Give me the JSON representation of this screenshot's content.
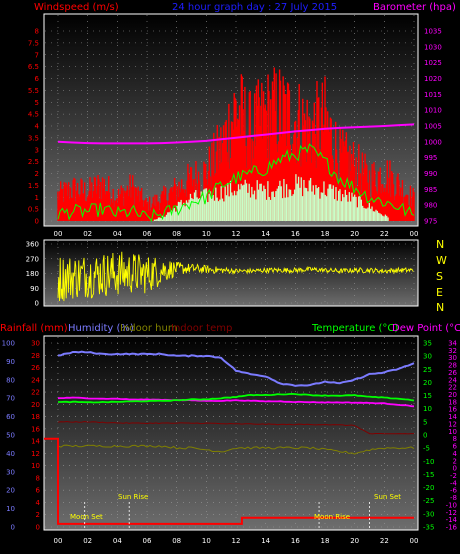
{
  "header": {
    "windspeed_label": "Windspeed (m/s)",
    "center_title": "24 hour graph day : 27 July 2015",
    "barometer_label": "Barometer (hpa)"
  },
  "bottom_header": {
    "rainfall": "Rainfall (mm)",
    "humidity": "Humidity (%)",
    "indoor_hum": "Indoor hum",
    "indoor_temp": "Indoor temp",
    "temperature": "Temperature (°C)",
    "dew_point": "Dew Point (°C)"
  },
  "compass": [
    "N",
    "W",
    "S",
    "E",
    "N"
  ],
  "annotations": {
    "moon_set": "Moon Set",
    "sun_rise": "Sun Rise",
    "moon_rise": "Moon Rise",
    "sun_set": "Sun Set"
  },
  "colors": {
    "windspeed": "#ff0000",
    "gust": "#ff0000",
    "avg_wind": "#00ff00",
    "barometer": "#ff00ff",
    "direction": "#ffff00",
    "rain": "#ff0000",
    "humidity": "#7b7bff",
    "indoor_hum": "#808000",
    "indoor_temp": "#800000",
    "temperature": "#00ff00",
    "dew_point": "#ff00ff",
    "solar": "#c8ffc8"
  },
  "chart_data": [
    {
      "type": "area",
      "name": "wind_baro",
      "x_ticks": [
        "00",
        "02",
        "04",
        "06",
        "08",
        "10",
        "12",
        "14",
        "16",
        "18",
        "20",
        "22",
        "00"
      ],
      "wind_ticks": [
        "0",
        "0.5",
        "1",
        "1.5",
        "2",
        "2.5",
        "3",
        "3.5",
        "4",
        "4.5",
        "5",
        "5.5",
        "6",
        "6.5",
        "7",
        "7.5",
        "8"
      ],
      "wind_ylim": [
        0,
        8
      ],
      "baro_ticks": [
        "975",
        "980",
        "985",
        "990",
        "995",
        "1000",
        "1005",
        "1010",
        "1015",
        "1020",
        "1025",
        "1030",
        "1035"
      ],
      "baro_ylim": [
        975,
        1035
      ],
      "x_hours": [
        0,
        1,
        2,
        3,
        4,
        5,
        6,
        7,
        8,
        9,
        10,
        11,
        12,
        13,
        14,
        15,
        16,
        17,
        18,
        19,
        20,
        21,
        22,
        23,
        24
      ],
      "gust": [
        1.6,
        2.0,
        1.8,
        2.3,
        1.5,
        2.1,
        1.0,
        1.4,
        2.0,
        2.6,
        3.0,
        4.5,
        7.0,
        5.5,
        6.5,
        6.8,
        6.3,
        5.7,
        6.2,
        4.0,
        3.5,
        2.6,
        3.0,
        2.2,
        1.4
      ],
      "avg_wind": [
        0.3,
        0.4,
        0.4,
        0.5,
        0.3,
        0.4,
        0.1,
        0.3,
        0.5,
        0.8,
        1.0,
        1.5,
        1.8,
        2.0,
        2.2,
        2.6,
        2.8,
        3.0,
        2.5,
        1.8,
        1.4,
        1.0,
        0.8,
        0.6,
        0.2
      ],
      "solar": [
        0,
        0,
        0,
        0,
        0,
        0,
        0,
        0.2,
        0.8,
        1.3,
        1.4,
        1.6,
        1.8,
        1.8,
        1.7,
        1.9,
        2.0,
        1.9,
        1.8,
        1.5,
        1.2,
        0.8,
        0.3,
        0,
        0
      ],
      "barometer": [
        1000.0,
        999.8,
        999.6,
        999.5,
        999.5,
        999.5,
        999.5,
        999.6,
        999.8,
        1000.0,
        1000.3,
        1000.8,
        1001.3,
        1001.8,
        1002.3,
        1002.8,
        1003.3,
        1003.7,
        1004.1,
        1004.4,
        1004.6,
        1004.8,
        1005.0,
        1005.3,
        1005.5
      ]
    },
    {
      "type": "line",
      "name": "wind_direction",
      "y_ticks": [
        "0",
        "90",
        "180",
        "270",
        "360"
      ],
      "ylim": [
        0,
        360
      ],
      "x_hours": [
        0,
        1,
        2,
        3,
        4,
        5,
        6,
        7,
        8,
        9,
        10,
        11,
        12,
        13,
        14,
        15,
        16,
        17,
        18,
        19,
        20,
        21,
        22,
        23,
        24
      ],
      "mean_direction": [
        150,
        160,
        170,
        175,
        180,
        185,
        175,
        200,
        210,
        210,
        205,
        200,
        195,
        195,
        200,
        200,
        200,
        205,
        200,
        195,
        200,
        200,
        195,
        200,
        200
      ],
      "spread": [
        150,
        140,
        140,
        140,
        140,
        130,
        120,
        90,
        40,
        30,
        25,
        20,
        15,
        15,
        15,
        15,
        15,
        15,
        15,
        15,
        15,
        15,
        15,
        15,
        15
      ]
    },
    {
      "type": "line",
      "name": "temp_hum_rain",
      "x_ticks": [
        "00",
        "02",
        "04",
        "06",
        "08",
        "10",
        "12",
        "14",
        "16",
        "18",
        "20",
        "22",
        "00"
      ],
      "rain_ticks": [
        "0",
        "2",
        "4",
        "6",
        "8",
        "10",
        "12",
        "14",
        "16",
        "18",
        "20",
        "22",
        "24",
        "26",
        "28",
        "30"
      ],
      "rain_ylim": [
        0,
        30
      ],
      "hum_ticks": [
        "0",
        "10",
        "20",
        "30",
        "40",
        "50",
        "60",
        "70",
        "80",
        "90",
        "100"
      ],
      "hum_ylim": [
        0,
        100
      ],
      "temp_ticks": [
        "-35",
        "-30",
        "-25",
        "-20",
        "-15",
        "-10",
        "-5",
        "0",
        "5",
        "10",
        "15",
        "20",
        "25",
        "30",
        "35"
      ],
      "temp_ylim": [
        -35,
        35
      ],
      "dew_ticks": [
        "-16",
        "-14",
        "-12",
        "-10",
        "-8",
        "-6",
        "-4",
        "-2",
        "0",
        "2",
        "4",
        "6",
        "8",
        "10",
        "12",
        "14",
        "16",
        "18",
        "20",
        "22",
        "24",
        "26",
        "28",
        "30",
        "32",
        "34"
      ],
      "x_hours": [
        0,
        1,
        2,
        3,
        4,
        5,
        6,
        7,
        8,
        9,
        10,
        11,
        12,
        13,
        14,
        15,
        16,
        17,
        18,
        19,
        20,
        21,
        22,
        23,
        24
      ],
      "humidity": [
        93,
        95,
        95,
        94,
        94,
        94,
        94,
        94,
        93,
        93,
        93,
        92,
        85,
        83,
        82,
        78,
        77,
        77,
        79,
        78,
        80,
        83,
        84,
        86,
        89
      ],
      "temperature": [
        12.5,
        12.6,
        12.4,
        12.5,
        12.6,
        12.8,
        12.9,
        13.0,
        13.2,
        13.5,
        13.6,
        14.0,
        14.5,
        15.2,
        15.2,
        15.5,
        15.6,
        15.2,
        15.0,
        15.0,
        15.1,
        14.5,
        14.2,
        13.8,
        13.2
      ],
      "dew_point": [
        14.0,
        14.2,
        14.0,
        13.8,
        13.8,
        13.5,
        13.5,
        13.4,
        13.3,
        13.2,
        13.0,
        13.0,
        13.2,
        13.0,
        12.8,
        12.8,
        12.6,
        12.5,
        12.4,
        12.4,
        12.3,
        12.2,
        12.0,
        11.5,
        11.0
      ],
      "indoor_temp": [
        5,
        5,
        5,
        4.8,
        4.6,
        4.5,
        4.5,
        4.5,
        4.5,
        4.5,
        4.5,
        4.3,
        4.2,
        4.2,
        4.1,
        4.0,
        4.0,
        4.0,
        4.0,
        3.8,
        3.6,
        0.5,
        0.4,
        0.5,
        0.5
      ],
      "indoor_hum": [
        44,
        44,
        44,
        44,
        44,
        44,
        44,
        44,
        43,
        43,
        42,
        41,
        43,
        43,
        43,
        43,
        43,
        43,
        42,
        41,
        40,
        42,
        43,
        43,
        43
      ],
      "rain": [
        14.4,
        0.5,
        0.5,
        0.5,
        0.5,
        0.5,
        0.5,
        0.5,
        0.5,
        0.5,
        0.5,
        0.5,
        0.5,
        1.5,
        1.5,
        1.5,
        1.5,
        1.5,
        1.5,
        1.5,
        1.5,
        1.5,
        1.5,
        1.5,
        1.5
      ]
    }
  ]
}
